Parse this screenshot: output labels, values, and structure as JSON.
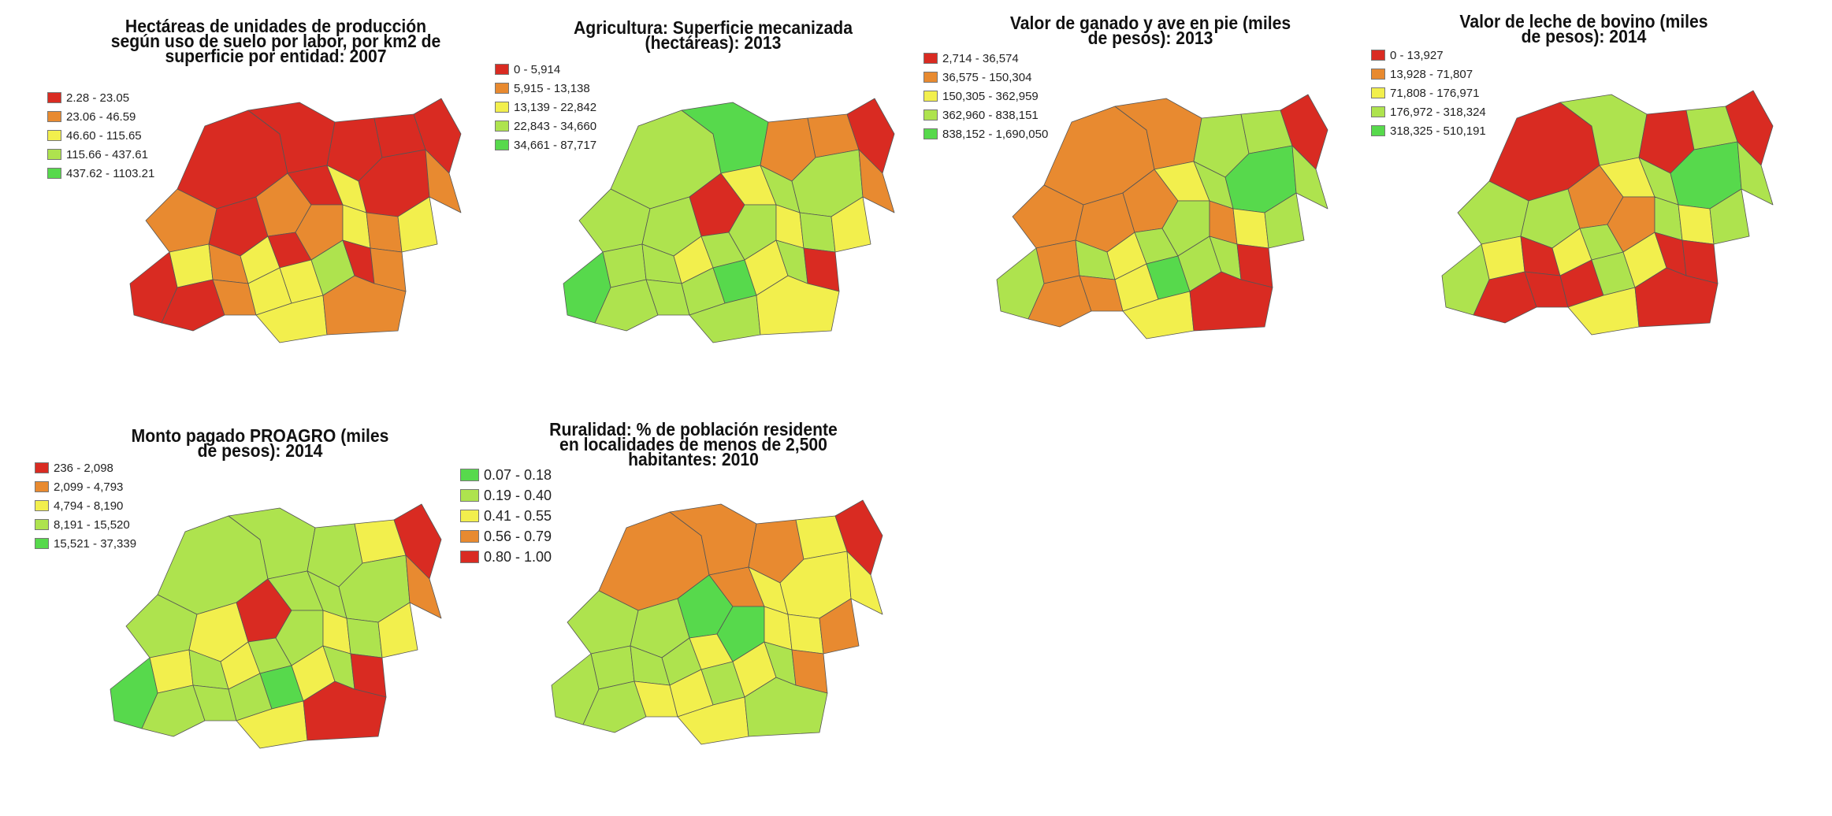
{
  "colors": {
    "red": "#d92b22",
    "orange": "#e88a30",
    "yellow": "#f2ef4d",
    "lightgreen": "#aee34e",
    "green": "#57d94c"
  },
  "maps": [
    {
      "title": "Hectáreas de unidades de producción según uso de suelo por labor, por km2 de superficie por entidad: 2007",
      "legend": [
        {
          "label": "2.28 - 23.05",
          "color": "red"
        },
        {
          "label": "23.06 - 46.59",
          "color": "orange"
        },
        {
          "label": "46.60 - 115.65",
          "color": "yellow"
        },
        {
          "label": "115.66 - 437.61",
          "color": "lightgreen"
        },
        {
          "label": "437.62 - 1103.21",
          "color": "green"
        }
      ],
      "colorScheme": [
        "red",
        "red",
        "red",
        "red",
        "red",
        "orange",
        "red",
        "orange",
        "red",
        "yellow",
        "red",
        "orange",
        "yellow",
        "red",
        "orange",
        "yellow",
        "red",
        "orange",
        "yellow",
        "orange",
        "yellow",
        "red",
        "orange",
        "yellow",
        "yellow",
        "lightgreen",
        "red",
        "orange",
        "yellow",
        "orange"
      ]
    },
    {
      "title": "Agricultura: Superficie mecanizada (hectáreas): 2013",
      "legend": [
        {
          "label": "0 - 5,914",
          "color": "red"
        },
        {
          "label": "5,915 - 13,138",
          "color": "orange"
        },
        {
          "label": "13,139 - 22,842",
          "color": "yellow"
        },
        {
          "label": "22,843 - 34,660",
          "color": "lightgreen"
        },
        {
          "label": "34,661 - 87,717",
          "color": "green"
        }
      ],
      "colorScheme": [
        "lightgreen",
        "green",
        "orange",
        "orange",
        "red",
        "lightgreen",
        "lightgreen",
        "red",
        "yellow",
        "lightgreen",
        "lightgreen",
        "orange",
        "lightgreen",
        "green",
        "lightgreen",
        "yellow",
        "lightgreen",
        "lightgreen",
        "yellow",
        "lightgreen",
        "yellow",
        "lightgreen",
        "lightgreen",
        "lightgreen",
        "green",
        "yellow",
        "lightgreen",
        "red",
        "lightgreen",
        "yellow"
      ]
    },
    {
      "title": "Valor de ganado y ave en pie (miles de pesos): 2013",
      "legend": [
        {
          "label": "2,714 - 36,574",
          "color": "red"
        },
        {
          "label": "36,575 - 150,304",
          "color": "orange"
        },
        {
          "label": "150,305 - 362,959",
          "color": "yellow"
        },
        {
          "label": "362,960 - 838,151",
          "color": "lightgreen"
        },
        {
          "label": "838,152 - 1,690,050",
          "color": "green"
        }
      ],
      "colorScheme": [
        "orange",
        "orange",
        "lightgreen",
        "lightgreen",
        "red",
        "orange",
        "orange",
        "orange",
        "yellow",
        "lightgreen",
        "green",
        "lightgreen",
        "orange",
        "lightgreen",
        "lightgreen",
        "yellow",
        "lightgreen",
        "lightgreen",
        "orange",
        "yellow",
        "lightgreen",
        "orange",
        "orange",
        "yellow",
        "green",
        "lightgreen",
        "lightgreen",
        "red",
        "yellow",
        "red"
      ]
    },
    {
      "title": "Valor de leche de bovino (miles de pesos): 2014",
      "legend": [
        {
          "label": "0 - 13,927",
          "color": "red"
        },
        {
          "label": "13,928 - 71,807",
          "color": "orange"
        },
        {
          "label": "71,808 - 176,971",
          "color": "yellow"
        },
        {
          "label": "176,972 - 318,324",
          "color": "lightgreen"
        },
        {
          "label": "318,325 - 510,191",
          "color": "green"
        }
      ],
      "colorScheme": [
        "red",
        "lightgreen",
        "red",
        "lightgreen",
        "red",
        "lightgreen",
        "lightgreen",
        "orange",
        "yellow",
        "lightgreen",
        "green",
        "lightgreen",
        "yellow",
        "lightgreen",
        "red",
        "yellow",
        "lightgreen",
        "orange",
        "lightgreen",
        "yellow",
        "lightgreen",
        "red",
        "red",
        "red",
        "lightgreen",
        "yellow",
        "red",
        "red",
        "yellow",
        "red"
      ]
    },
    {
      "title": "Monto pagado PROAGRO (miles de pesos): 2014",
      "legend": [
        {
          "label": "236 - 2,098",
          "color": "red"
        },
        {
          "label": "2,099 - 4,793",
          "color": "orange"
        },
        {
          "label": "4,794 - 8,190",
          "color": "yellow"
        },
        {
          "label": "8,191 - 15,520",
          "color": "lightgreen"
        },
        {
          "label": "15,521 - 37,339",
          "color": "green"
        }
      ],
      "colorScheme": [
        "lightgreen",
        "lightgreen",
        "lightgreen",
        "yellow",
        "red",
        "lightgreen",
        "yellow",
        "red",
        "lightgreen",
        "lightgreen",
        "lightgreen",
        "orange",
        "yellow",
        "green",
        "lightgreen",
        "yellow",
        "lightgreen",
        "lightgreen",
        "yellow",
        "lightgreen",
        "yellow",
        "lightgreen",
        "lightgreen",
        "lightgreen",
        "green",
        "yellow",
        "lightgreen",
        "red",
        "yellow",
        "red"
      ]
    },
    {
      "title": "Ruralidad: % de población residente en localidades de menos de 2,500 habitantes: 2010",
      "legend": [
        {
          "label": "0.07 - 0.18",
          "color": "green"
        },
        {
          "label": "0.19 - 0.40",
          "color": "lightgreen"
        },
        {
          "label": "0.41 - 0.55",
          "color": "yellow"
        },
        {
          "label": "0.56 - 0.79",
          "color": "orange"
        },
        {
          "label": "0.80 - 1.00",
          "color": "red"
        }
      ],
      "colorScheme": [
        "orange",
        "orange",
        "orange",
        "yellow",
        "red",
        "lightgreen",
        "lightgreen",
        "green",
        "orange",
        "yellow",
        "yellow",
        "yellow",
        "lightgreen",
        "lightgreen",
        "lightgreen",
        "lightgreen",
        "yellow",
        "green",
        "yellow",
        "yellow",
        "orange",
        "lightgreen",
        "yellow",
        "yellow",
        "lightgreen",
        "yellow",
        "lightgreen",
        "orange",
        "yellow",
        "lightgreen"
      ]
    }
  ]
}
